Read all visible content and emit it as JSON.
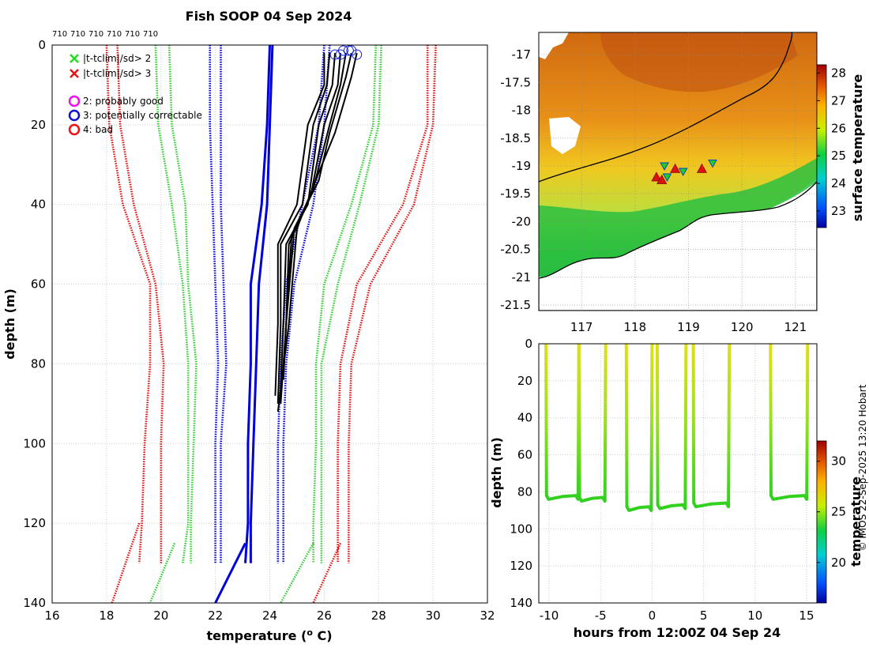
{
  "title": "Fish SOOP 04 Sep 2024",
  "credit": "© IMOS 22-Sep-2025 13:20 Hobart",
  "top_labels": [
    "710",
    "710",
    "710",
    "710",
    "710",
    "710"
  ],
  "legend": {
    "items": [
      {
        "marker": "x",
        "color": "#22dd22",
        "label": "|t-tclim|/sd> 2"
      },
      {
        "marker": "x",
        "color": "#ee1111",
        "label": "|t-tclim|/sd> 3"
      },
      {
        "marker": "o",
        "color": "#ee11ee",
        "label": "2: probably good"
      },
      {
        "marker": "o",
        "color": "#1111cc",
        "label": "3: potentially correctable"
      },
      {
        "marker": "o",
        "color": "#ee1111",
        "label": "4: bad"
      }
    ]
  },
  "colors": {
    "red": "#dd1111",
    "green": "#33cc33",
    "blue": "#0000dd",
    "black": "#000000",
    "grid": "#cccccc"
  },
  "chart_data": [
    {
      "type": "line",
      "name": "profiles",
      "xlabel": "temperature (o C)",
      "ylabel": "depth (m)",
      "xlim": [
        16,
        32
      ],
      "ylim": [
        140,
        0
      ],
      "xticks": [
        16,
        18,
        20,
        22,
        24,
        26,
        28,
        30,
        32
      ],
      "yticks": [
        0,
        20,
        40,
        60,
        80,
        100,
        120,
        140
      ],
      "series": [
        {
          "name": "clim-3sd-low",
          "style": "dotted",
          "color": "red",
          "points": [
            [
              18,
              0
            ],
            [
              18.1,
              20
            ],
            [
              18.6,
              40
            ],
            [
              19.6,
              60
            ],
            [
              19.6,
              80
            ],
            [
              19.4,
              100
            ],
            [
              19.3,
              120
            ],
            [
              19.2,
              130
            ]
          ]
        },
        {
          "name": "clim-3sd-low-b",
          "style": "dotted",
          "color": "red",
          "points": [
            [
              18.4,
              0
            ],
            [
              18.5,
              20
            ],
            [
              19,
              40
            ],
            [
              19.8,
              60
            ],
            [
              20.1,
              80
            ],
            [
              20,
              100
            ],
            [
              20,
              120
            ],
            [
              20,
              130
            ]
          ]
        },
        {
          "name": "clim-2sd-low",
          "style": "dotted",
          "color": "green",
          "points": [
            [
              19.8,
              0
            ],
            [
              19.9,
              20
            ],
            [
              20.4,
              40
            ],
            [
              20.8,
              60
            ],
            [
              21,
              80
            ],
            [
              21,
              100
            ],
            [
              21,
              120
            ],
            [
              20.8,
              130
            ]
          ]
        },
        {
          "name": "clim-2sd-low-b",
          "style": "dotted",
          "color": "green",
          "points": [
            [
              20.3,
              0
            ],
            [
              20.4,
              20
            ],
            [
              20.9,
              40
            ],
            [
              21,
              60
            ],
            [
              21.3,
              80
            ],
            [
              21.2,
              100
            ],
            [
              21.1,
              120
            ],
            [
              21.1,
              130
            ]
          ]
        },
        {
          "name": "clim-1sd-low",
          "style": "dotted",
          "color": "blue",
          "points": [
            [
              21.8,
              0
            ],
            [
              21.8,
              20
            ],
            [
              21.9,
              40
            ],
            [
              22,
              60
            ],
            [
              22.1,
              80
            ],
            [
              22,
              100
            ],
            [
              22,
              120
            ],
            [
              22,
              130
            ]
          ]
        },
        {
          "name": "clim-1sd-low-b",
          "style": "dotted",
          "color": "blue",
          "points": [
            [
              22.2,
              0
            ],
            [
              22.2,
              20
            ],
            [
              22.2,
              40
            ],
            [
              22.3,
              60
            ],
            [
              22.4,
              80
            ],
            [
              22.2,
              100
            ],
            [
              22.2,
              120
            ],
            [
              22.2,
              130
            ]
          ]
        },
        {
          "name": "clim-mean",
          "style": "solid",
          "color": "blue",
          "points": [
            [
              24,
              0
            ],
            [
              23.9,
              20
            ],
            [
              23.7,
              40
            ],
            [
              23.3,
              60
            ],
            [
              23.3,
              80
            ],
            [
              23.2,
              100
            ],
            [
              23.2,
              120
            ],
            [
              23.1,
              130
            ]
          ]
        },
        {
          "name": "clim-mean-b",
          "style": "solid",
          "color": "blue",
          "points": [
            [
              24.1,
              0
            ],
            [
              24.0,
              20
            ],
            [
              23.9,
              40
            ],
            [
              23.6,
              60
            ],
            [
              23.5,
              80
            ],
            [
              23.4,
              100
            ],
            [
              23.3,
              120
            ],
            [
              23.3,
              130
            ]
          ]
        },
        {
          "name": "clim-1sd-high",
          "style": "dotted",
          "color": "blue",
          "points": [
            [
              26.2,
              0
            ],
            [
              26.0,
              20
            ],
            [
              25.6,
              40
            ],
            [
              24.9,
              60
            ],
            [
              24.6,
              80
            ],
            [
              24.5,
              100
            ],
            [
              24.5,
              120
            ],
            [
              24.5,
              130
            ]
          ]
        },
        {
          "name": "clim-1sd-high-b",
          "style": "dotted",
          "color": "blue",
          "points": [
            [
              26.0,
              0
            ],
            [
              25.8,
              20
            ],
            [
              25.2,
              40
            ],
            [
              24.6,
              60
            ],
            [
              24.4,
              80
            ],
            [
              24.3,
              100
            ],
            [
              24.3,
              120
            ],
            [
              24.3,
              130
            ]
          ]
        },
        {
          "name": "clim-2sd-high",
          "style": "dotted",
          "color": "green",
          "points": [
            [
              27.9,
              0
            ],
            [
              27.8,
              20
            ],
            [
              27.0,
              40
            ],
            [
              26.0,
              60
            ],
            [
              25.7,
              80
            ],
            [
              25.7,
              100
            ],
            [
              25.6,
              120
            ],
            [
              25.6,
              130
            ]
          ]
        },
        {
          "name": "clim-2sd-high-b",
          "style": "dotted",
          "color": "green",
          "points": [
            [
              28.1,
              0
            ],
            [
              28.0,
              20
            ],
            [
              27.3,
              40
            ],
            [
              26.5,
              60
            ],
            [
              25.9,
              80
            ],
            [
              25.9,
              100
            ],
            [
              25.9,
              120
            ],
            [
              25.9,
              130
            ]
          ]
        },
        {
          "name": "clim-3sd-high",
          "style": "dotted",
          "color": "red",
          "points": [
            [
              29.8,
              0
            ],
            [
              29.8,
              20
            ],
            [
              28.9,
              40
            ],
            [
              27.2,
              60
            ],
            [
              26.6,
              80
            ],
            [
              26.5,
              100
            ],
            [
              26.5,
              120
            ],
            [
              26.5,
              130
            ]
          ]
        },
        {
          "name": "clim-3sd-high-b",
          "style": "dotted",
          "color": "red",
          "points": [
            [
              30.1,
              0
            ],
            [
              30.0,
              20
            ],
            [
              29.3,
              40
            ],
            [
              27.7,
              60
            ],
            [
              27.0,
              80
            ],
            [
              26.9,
              100
            ],
            [
              26.9,
              120
            ],
            [
              26.9,
              130
            ]
          ]
        },
        {
          "name": "ext-red-low",
          "style": "dotted",
          "color": "red",
          "points": [
            [
              19.2,
              120
            ],
            [
              18.2,
              140
            ]
          ]
        },
        {
          "name": "ext-green-low",
          "style": "dotted",
          "color": "green",
          "points": [
            [
              20.5,
              125
            ],
            [
              19.6,
              140
            ]
          ]
        },
        {
          "name": "ext-blue-mean",
          "style": "solid",
          "color": "blue",
          "points": [
            [
              23.1,
              125
            ],
            [
              22.0,
              140
            ]
          ]
        },
        {
          "name": "ext-green-high",
          "style": "dotted",
          "color": "green",
          "points": [
            [
              25.6,
              125
            ],
            [
              24.4,
              140
            ]
          ]
        },
        {
          "name": "ext-red-high",
          "style": "dotted",
          "color": "red",
          "points": [
            [
              26.6,
              125
            ],
            [
              25.6,
              140
            ]
          ]
        },
        {
          "name": "obs-1",
          "style": "solid",
          "color": "black",
          "points": [
            [
              26.0,
              2
            ],
            [
              26.0,
              10
            ],
            [
              25.4,
              20
            ],
            [
              25.0,
              40
            ],
            [
              24.3,
              50
            ],
            [
              24.3,
              70
            ],
            [
              24.2,
              88
            ]
          ]
        },
        {
          "name": "obs-2",
          "style": "solid",
          "color": "black",
          "points": [
            [
              26.2,
              2
            ],
            [
              26.1,
              10
            ],
            [
              25.6,
              20
            ],
            [
              25.2,
              40
            ],
            [
              24.4,
              50
            ],
            [
              24.4,
              70
            ],
            [
              24.3,
              90
            ]
          ]
        },
        {
          "name": "obs-3",
          "style": "solid",
          "color": "black",
          "points": [
            [
              26.4,
              2
            ],
            [
              26.3,
              10
            ],
            [
              25.8,
              20
            ],
            [
              25.4,
              40
            ],
            [
              24.6,
              50
            ],
            [
              24.5,
              70
            ],
            [
              24.4,
              86
            ]
          ]
        },
        {
          "name": "obs-4",
          "style": "solid",
          "color": "black",
          "points": [
            [
              26.6,
              2
            ],
            [
              26.5,
              10
            ],
            [
              26.0,
              20
            ],
            [
              25.5,
              38
            ],
            [
              24.7,
              50
            ],
            [
              24.6,
              70
            ],
            [
              24.5,
              84
            ]
          ]
        },
        {
          "name": "obs-5",
          "style": "solid",
          "color": "black",
          "points": [
            [
              26.8,
              2
            ],
            [
              26.6,
              10
            ],
            [
              26.2,
              20
            ],
            [
              25.6,
              36
            ],
            [
              24.8,
              48
            ],
            [
              24.6,
              70
            ],
            [
              24.5,
              84
            ]
          ]
        },
        {
          "name": "obs-6",
          "style": "solid",
          "color": "black",
          "points": [
            [
              27.0,
              2
            ],
            [
              26.8,
              8
            ],
            [
              26.2,
              22
            ],
            [
              25.8,
              34
            ],
            [
              24.9,
              46
            ],
            [
              24.6,
              70
            ],
            [
              24.4,
              90
            ]
          ]
        },
        {
          "name": "obs-7",
          "style": "solid",
          "color": "black",
          "points": [
            [
              27.2,
              2
            ],
            [
              27.0,
              8
            ],
            [
              26.4,
              22
            ],
            [
              25.8,
              32
            ],
            [
              25.0,
              46
            ],
            [
              24.7,
              70
            ],
            [
              24.3,
              92
            ]
          ]
        }
      ],
      "flag_circles": [
        [
          26.7,
          1
        ],
        [
          26.9,
          1
        ],
        [
          27.2,
          2
        ],
        [
          26.4,
          2
        ],
        [
          27.0,
          1
        ],
        [
          26.6,
          2
        ]
      ]
    },
    {
      "type": "heatmap",
      "name": "surface-temperature-map",
      "xlim": [
        116.2,
        121.4
      ],
      "ylim": [
        -21.6,
        -16.6
      ],
      "xticks": [
        117,
        118,
        119,
        120,
        121
      ],
      "yticks": [
        -17,
        -17.5,
        -18,
        -18.5,
        -19,
        -19.5,
        -20,
        -20.5,
        -21,
        -21.5
      ],
      "colorbar": {
        "label": "surface temperature",
        "range": [
          22.4,
          28.3
        ],
        "ticks": [
          23,
          24,
          25,
          26,
          27,
          28
        ]
      },
      "stations": [
        [
          118.4,
          -19.2
        ],
        [
          118.55,
          -19.0
        ],
        [
          118.75,
          -19.05
        ],
        [
          118.9,
          -19.1
        ],
        [
          119.25,
          -19.05
        ],
        [
          119.45,
          -18.95
        ],
        [
          118.5,
          -19.25
        ],
        [
          118.6,
          -19.2
        ]
      ]
    },
    {
      "type": "scatter",
      "name": "depth-time",
      "xlabel": "hours from 12:00Z 04 Sep 24",
      "ylabel": "depth (m)",
      "xlim": [
        -11,
        16
      ],
      "ylim": [
        140,
        0
      ],
      "xticks": [
        -10,
        -5,
        0,
        5,
        10,
        15
      ],
      "yticks": [
        0,
        20,
        40,
        60,
        80,
        100,
        120,
        140
      ],
      "colorbar": {
        "label": "temperature",
        "range": [
          16,
          32
        ],
        "ticks": [
          20,
          25,
          30
        ]
      },
      "deployments": [
        {
          "start": -10.3,
          "end": -7.1,
          "bottom": 84
        },
        {
          "start": -7.1,
          "end": -4.5,
          "bottom": 85
        },
        {
          "start": -2.5,
          "end": 0,
          "bottom": 90
        },
        {
          "start": 0.5,
          "end": 3.3,
          "bottom": 89
        },
        {
          "start": 4.0,
          "end": 7.5,
          "bottom": 88
        },
        {
          "start": 11.5,
          "end": 15.1,
          "bottom": 84
        }
      ]
    }
  ]
}
